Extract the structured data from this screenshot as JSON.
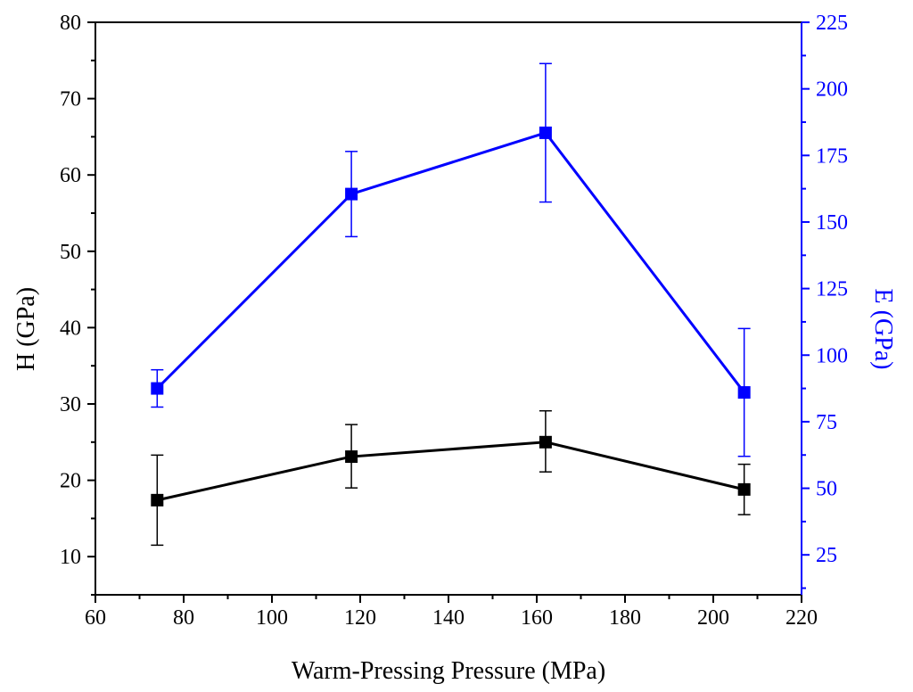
{
  "chart_data": {
    "type": "line",
    "title": "",
    "xlabel": "Warm-Pressing Pressure (MPa)",
    "ylabel_left": "H (GPa)",
    "ylabel_right": "E (GPa)",
    "xlim": [
      60,
      220
    ],
    "ylim_left": [
      5,
      80
    ],
    "ylim_right": [
      10,
      225
    ],
    "x_ticks": [
      60,
      80,
      100,
      120,
      140,
      160,
      180,
      200,
      220
    ],
    "y_left_ticks": [
      10,
      20,
      30,
      40,
      50,
      60,
      70,
      80
    ],
    "y_right_ticks": [
      25,
      50,
      75,
      100,
      125,
      150,
      175,
      200,
      225
    ],
    "colors": {
      "left": "#000000",
      "right": "#0000ff"
    },
    "grid": false,
    "series": [
      {
        "axis": "left",
        "color": "#000000",
        "x": [
          74,
          118,
          162,
          207
        ],
        "y": [
          17.4,
          23.1,
          25.0,
          18.8
        ],
        "err_low": [
          11.5,
          19.0,
          21.1,
          15.5
        ],
        "err_high": [
          23.3,
          27.3,
          29.1,
          22.1
        ]
      },
      {
        "axis": "right",
        "color": "#0000ff",
        "x": [
          74,
          118,
          162,
          207
        ],
        "y": [
          87.5,
          160.5,
          183.5,
          86
        ],
        "err_low": [
          80.5,
          144.5,
          157.5,
          62
        ],
        "err_high": [
          94.5,
          176.5,
          209.5,
          110
        ]
      }
    ]
  }
}
